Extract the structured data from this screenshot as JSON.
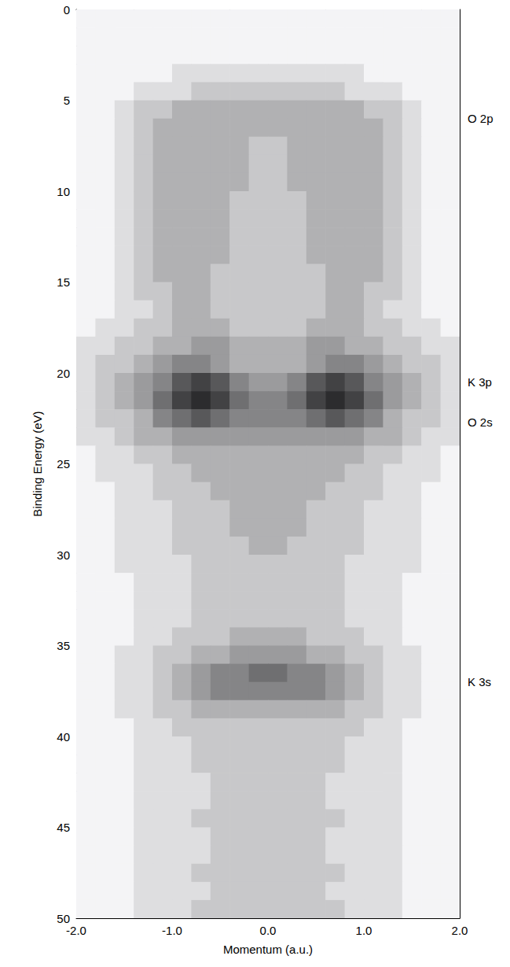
{
  "chart_data": {
    "type": "heatmap",
    "xlabel": "Momentum (a.u.)",
    "ylabel": "Binding Energy (eV)",
    "xlim": [
      -2,
      2
    ],
    "ylim": [
      0,
      50
    ],
    "xticks": [
      {
        "value": -2,
        "label": "-2.0"
      },
      {
        "value": -1,
        "label": "-1.0"
      },
      {
        "value": 0,
        "label": "0.0"
      },
      {
        "value": 1,
        "label": "1.0"
      },
      {
        "value": 2,
        "label": "2.0"
      }
    ],
    "xminor_ticks": [
      -1.5,
      -0.5,
      0.5,
      1.5
    ],
    "yticks": [
      0,
      5,
      10,
      15,
      20,
      25,
      30,
      35,
      40,
      45,
      50
    ],
    "grid": false,
    "annotations": [
      {
        "text": "O 2p",
        "y": 6
      },
      {
        "text": "K 3p",
        "y": 20.5
      },
      {
        "text": "O 2s",
        "y": 22.7
      },
      {
        "text": "K 3s",
        "y": 37
      }
    ],
    "x_bins": [
      -2.0,
      -1.8,
      -1.6,
      -1.4,
      -1.2,
      -1.0,
      -0.8,
      -0.6,
      -0.4,
      -0.2,
      0.0,
      0.2,
      0.4,
      0.6,
      0.8,
      1.0,
      1.2,
      1.4,
      1.6,
      1.8,
      2.0
    ],
    "y_bins": [
      0,
      1,
      2,
      3,
      4,
      5,
      6,
      7,
      8,
      9,
      10,
      11,
      12,
      13,
      14,
      15,
      16,
      17,
      18,
      19,
      20,
      21,
      22,
      23,
      24,
      25,
      26,
      27,
      28,
      29,
      30,
      31,
      32,
      33,
      34,
      35,
      36,
      37,
      38,
      39,
      40,
      41,
      42,
      43,
      44,
      45,
      46,
      47,
      48,
      49,
      50
    ],
    "zlim": [
      0,
      9
    ],
    "cells": [
      [
        0,
        0,
        0,
        0,
        0,
        0,
        0,
        0,
        0,
        0,
        0,
        0,
        0,
        0,
        0,
        0,
        0,
        0,
        0,
        0
      ],
      [
        0,
        0,
        0,
        0,
        0,
        0,
        0,
        0,
        0,
        0,
        0,
        0,
        0,
        0,
        0,
        0,
        0,
        0,
        0,
        0
      ],
      [
        0,
        0,
        0,
        0,
        0,
        0,
        0,
        0,
        0,
        0,
        0,
        0,
        0,
        0,
        0,
        0,
        0,
        0,
        0,
        0
      ],
      [
        0,
        0,
        0,
        0,
        0,
        1,
        1,
        1,
        1,
        1,
        1,
        1,
        1,
        1,
        1,
        0,
        0,
        0,
        0,
        0
      ],
      [
        0,
        0,
        0,
        1,
        1,
        1,
        2,
        2,
        2,
        2,
        2,
        2,
        2,
        2,
        1,
        1,
        1,
        0,
        0,
        0
      ],
      [
        0,
        0,
        1,
        2,
        2,
        3,
        3,
        3,
        3,
        3,
        3,
        3,
        3,
        3,
        3,
        2,
        2,
        1,
        0,
        0
      ],
      [
        0,
        0,
        1,
        2,
        3,
        3,
        3,
        3,
        3,
        3,
        3,
        3,
        3,
        3,
        3,
        3,
        2,
        1,
        0,
        0
      ],
      [
        0,
        0,
        1,
        2,
        3,
        3,
        3,
        3,
        3,
        2,
        2,
        3,
        3,
        3,
        3,
        3,
        2,
        1,
        0,
        0
      ],
      [
        0,
        0,
        1,
        2,
        3,
        3,
        3,
        3,
        3,
        2,
        2,
        3,
        3,
        3,
        3,
        3,
        2,
        1,
        0,
        0
      ],
      [
        0,
        0,
        1,
        2,
        3,
        3,
        3,
        3,
        3,
        2,
        2,
        3,
        3,
        3,
        3,
        3,
        2,
        1,
        0,
        0
      ],
      [
        0,
        0,
        1,
        2,
        3,
        3,
        3,
        3,
        2,
        2,
        2,
        2,
        3,
        3,
        3,
        3,
        2,
        1,
        0,
        0
      ],
      [
        0,
        0,
        1,
        2,
        3,
        3,
        3,
        3,
        2,
        2,
        2,
        2,
        3,
        3,
        3,
        3,
        2,
        1,
        0,
        0
      ],
      [
        0,
        0,
        1,
        2,
        3,
        3,
        3,
        3,
        2,
        2,
        2,
        2,
        3,
        3,
        3,
        3,
        2,
        1,
        0,
        0
      ],
      [
        0,
        0,
        1,
        2,
        3,
        3,
        3,
        3,
        2,
        2,
        2,
        2,
        3,
        3,
        3,
        3,
        2,
        1,
        0,
        0
      ],
      [
        0,
        0,
        1,
        2,
        3,
        3,
        3,
        2,
        2,
        2,
        2,
        2,
        2,
        3,
        3,
        3,
        2,
        1,
        0,
        0
      ],
      [
        0,
        0,
        1,
        2,
        2,
        3,
        3,
        2,
        2,
        2,
        2,
        2,
        2,
        3,
        3,
        2,
        2,
        1,
        0,
        0
      ],
      [
        0,
        0,
        1,
        1,
        2,
        3,
        3,
        2,
        2,
        2,
        2,
        2,
        2,
        3,
        3,
        2,
        1,
        1,
        0,
        0
      ],
      [
        0,
        1,
        1,
        2,
        2,
        3,
        3,
        3,
        2,
        2,
        2,
        2,
        3,
        3,
        3,
        2,
        2,
        1,
        1,
        0
      ],
      [
        1,
        1,
        2,
        2,
        3,
        3,
        4,
        4,
        3,
        3,
        3,
        3,
        4,
        4,
        3,
        3,
        2,
        2,
        1,
        1
      ],
      [
        1,
        2,
        2,
        3,
        4,
        5,
        5,
        4,
        3,
        3,
        3,
        3,
        4,
        5,
        5,
        4,
        3,
        2,
        2,
        1
      ],
      [
        1,
        2,
        3,
        4,
        5,
        7,
        8,
        7,
        5,
        4,
        4,
        5,
        7,
        8,
        7,
        5,
        4,
        3,
        2,
        1
      ],
      [
        1,
        2,
        3,
        4,
        6,
        8,
        9,
        8,
        6,
        5,
        5,
        6,
        8,
        9,
        8,
        6,
        4,
        3,
        2,
        1
      ],
      [
        1,
        2,
        2,
        3,
        5,
        6,
        7,
        6,
        5,
        5,
        5,
        5,
        6,
        7,
        6,
        5,
        3,
        2,
        2,
        1
      ],
      [
        1,
        1,
        2,
        3,
        3,
        4,
        4,
        4,
        4,
        4,
        4,
        4,
        4,
        4,
        4,
        3,
        3,
        2,
        1,
        1
      ],
      [
        0,
        1,
        1,
        2,
        2,
        3,
        3,
        3,
        3,
        3,
        3,
        3,
        3,
        3,
        3,
        2,
        2,
        1,
        1,
        0
      ],
      [
        0,
        1,
        1,
        1,
        2,
        2,
        3,
        3,
        3,
        3,
        3,
        3,
        3,
        3,
        2,
        2,
        1,
        1,
        1,
        0
      ],
      [
        0,
        0,
        1,
        1,
        2,
        2,
        2,
        3,
        3,
        3,
        3,
        3,
        3,
        2,
        2,
        2,
        1,
        1,
        0,
        0
      ],
      [
        0,
        0,
        1,
        1,
        1,
        2,
        2,
        2,
        3,
        3,
        3,
        3,
        2,
        2,
        2,
        1,
        1,
        1,
        0,
        0
      ],
      [
        0,
        0,
        1,
        1,
        1,
        2,
        2,
        2,
        3,
        3,
        3,
        3,
        2,
        2,
        2,
        1,
        1,
        1,
        0,
        0
      ],
      [
        0,
        0,
        1,
        1,
        1,
        2,
        2,
        2,
        2,
        3,
        3,
        2,
        2,
        2,
        2,
        1,
        1,
        1,
        0,
        0
      ],
      [
        0,
        0,
        1,
        1,
        1,
        1,
        2,
        2,
        2,
        2,
        2,
        2,
        2,
        2,
        1,
        1,
        1,
        1,
        0,
        0
      ],
      [
        0,
        0,
        0,
        1,
        1,
        1,
        2,
        2,
        2,
        2,
        2,
        2,
        2,
        2,
        1,
        1,
        1,
        0,
        0,
        0
      ],
      [
        0,
        0,
        0,
        1,
        1,
        1,
        2,
        2,
        2,
        2,
        2,
        2,
        2,
        2,
        1,
        1,
        1,
        0,
        0,
        0
      ],
      [
        0,
        0,
        0,
        1,
        1,
        1,
        2,
        2,
        2,
        2,
        2,
        2,
        2,
        2,
        1,
        1,
        1,
        0,
        0,
        0
      ],
      [
        0,
        0,
        0,
        1,
        1,
        2,
        2,
        2,
        3,
        3,
        3,
        3,
        2,
        2,
        2,
        1,
        1,
        0,
        0,
        0
      ],
      [
        0,
        0,
        1,
        1,
        2,
        2,
        3,
        3,
        4,
        4,
        4,
        4,
        3,
        3,
        2,
        2,
        1,
        1,
        0,
        0
      ],
      [
        0,
        0,
        1,
        1,
        2,
        3,
        4,
        5,
        5,
        6,
        6,
        5,
        5,
        4,
        3,
        2,
        1,
        1,
        0,
        0
      ],
      [
        0,
        0,
        1,
        1,
        2,
        3,
        4,
        5,
        5,
        5,
        5,
        5,
        5,
        4,
        3,
        2,
        1,
        1,
        0,
        0
      ],
      [
        0,
        0,
        1,
        1,
        2,
        2,
        3,
        3,
        3,
        3,
        3,
        3,
        3,
        3,
        2,
        2,
        1,
        1,
        0,
        0
      ],
      [
        0,
        0,
        0,
        1,
        1,
        2,
        2,
        2,
        2,
        2,
        2,
        2,
        2,
        2,
        2,
        1,
        1,
        0,
        0,
        0
      ],
      [
        0,
        0,
        0,
        1,
        1,
        1,
        2,
        2,
        2,
        2,
        2,
        2,
        2,
        2,
        1,
        1,
        1,
        0,
        0,
        0
      ],
      [
        0,
        0,
        0,
        1,
        1,
        1,
        2,
        2,
        2,
        2,
        2,
        2,
        2,
        2,
        1,
        1,
        1,
        0,
        0,
        0
      ],
      [
        0,
        0,
        0,
        1,
        1,
        1,
        1,
        2,
        2,
        2,
        2,
        2,
        2,
        1,
        1,
        1,
        1,
        0,
        0,
        0
      ],
      [
        0,
        0,
        0,
        1,
        1,
        1,
        1,
        2,
        2,
        2,
        2,
        2,
        2,
        1,
        1,
        1,
        1,
        0,
        0,
        0
      ],
      [
        0,
        0,
        0,
        1,
        1,
        1,
        2,
        2,
        2,
        2,
        2,
        2,
        2,
        2,
        1,
        1,
        1,
        0,
        0,
        0
      ],
      [
        0,
        0,
        0,
        1,
        1,
        1,
        1,
        2,
        2,
        2,
        2,
        2,
        2,
        1,
        1,
        1,
        1,
        0,
        0,
        0
      ],
      [
        0,
        0,
        0,
        1,
        1,
        1,
        1,
        2,
        2,
        2,
        2,
        2,
        2,
        1,
        1,
        1,
        1,
        0,
        0,
        0
      ],
      [
        0,
        0,
        0,
        1,
        1,
        1,
        2,
        2,
        2,
        2,
        2,
        2,
        2,
        2,
        1,
        1,
        1,
        0,
        0,
        0
      ],
      [
        0,
        0,
        0,
        1,
        1,
        1,
        1,
        2,
        2,
        2,
        2,
        2,
        2,
        1,
        1,
        1,
        1,
        0,
        0,
        0
      ],
      [
        0,
        0,
        0,
        1,
        1,
        1,
        2,
        2,
        2,
        2,
        2,
        2,
        2,
        2,
        1,
        1,
        1,
        0,
        0,
        0
      ]
    ]
  }
}
